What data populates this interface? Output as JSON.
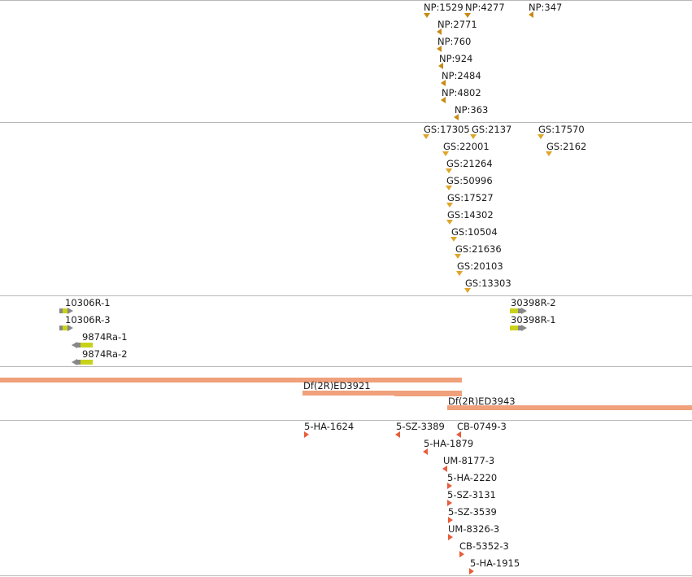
{
  "np_track": {
    "labels": [
      "NP:1529",
      "NP:4277",
      "NP:347",
      "NP:2771",
      "NP:760",
      "NP:924",
      "NP:2484",
      "NP:4802",
      "NP:363"
    ]
  },
  "gs_track": {
    "labels": [
      "GS:17305",
      "GS:2137",
      "GS:17570",
      "GS:22001",
      "GS:2162",
      "GS:21264",
      "GS:50996",
      "GS:17527",
      "GS:14302",
      "GS:10504",
      "GS:21636",
      "GS:20103",
      "GS:13303"
    ]
  },
  "rnai_track": {
    "labels": [
      "10306R-1",
      "10306R-3",
      "9874Ra-1",
      "9874Ra-2",
      "30398R-2",
      "30398R-1"
    ]
  },
  "deficiency_track": {
    "labels": [
      "Df(2R)ED3921",
      "Df(2R)ED3943"
    ]
  },
  "insertion_track": {
    "labels": [
      "5-HA-1624",
      "5-SZ-3389",
      "CB-0749-3",
      "5-HA-1879",
      "UM-8177-3",
      "5-HA-2220",
      "5-SZ-3131",
      "5-SZ-3539",
      "UM-8326-3",
      "CB-5352-3",
      "5-HA-1915"
    ]
  },
  "colors": {
    "np_marker": "#c88a12",
    "gs_marker": "#e0a528",
    "rnai_gene": "#c8d21a",
    "deficiency_bar": "#f0a07a",
    "insertion_marker": "#e85d3a",
    "divider": "#b8b8b8"
  }
}
